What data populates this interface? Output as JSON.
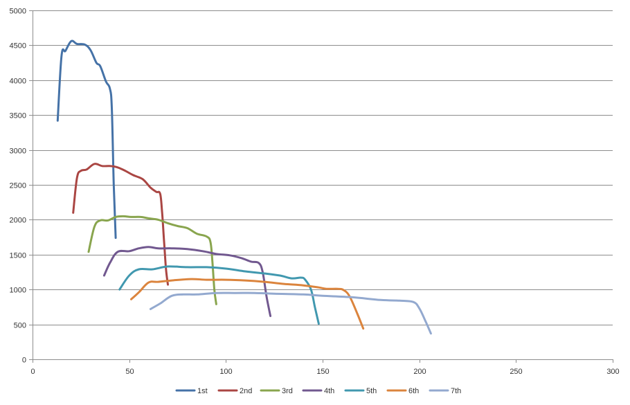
{
  "chart_data": {
    "type": "line",
    "title": "",
    "xlabel": "",
    "ylabel": "",
    "xlim": [
      0,
      300
    ],
    "ylim": [
      0,
      5000
    ],
    "x_ticks": [
      0,
      50,
      100,
      150,
      200,
      250,
      300
    ],
    "y_ticks": [
      0,
      500,
      1000,
      1500,
      2000,
      2500,
      3000,
      3500,
      4000,
      4500,
      5000
    ],
    "x_tick_labels": [
      "0",
      "50",
      "100",
      "150",
      "200",
      "250",
      "300"
    ],
    "y_tick_labels": [
      "0",
      "500",
      "1000",
      "1500",
      "2000",
      "2500",
      "3000",
      "3500",
      "4000",
      "4500",
      "5000"
    ],
    "grid": "horizontal",
    "legend_position": "bottom",
    "series": [
      {
        "name": "1st",
        "color": "#4572A7",
        "points": [
          [
            13,
            3420
          ],
          [
            15,
            4350
          ],
          [
            17,
            4420
          ],
          [
            20,
            4560
          ],
          [
            23,
            4520
          ],
          [
            27,
            4510
          ],
          [
            30,
            4430
          ],
          [
            33,
            4250
          ],
          [
            35,
            4200
          ],
          [
            38,
            3980
          ],
          [
            40,
            3880
          ],
          [
            41,
            3600
          ],
          [
            42,
            2500
          ],
          [
            43,
            1740
          ]
        ]
      },
      {
        "name": "2nd",
        "color": "#AA4643",
        "points": [
          [
            21,
            2100
          ],
          [
            23,
            2600
          ],
          [
            25,
            2700
          ],
          [
            28,
            2720
          ],
          [
            32,
            2800
          ],
          [
            36,
            2770
          ],
          [
            40,
            2770
          ],
          [
            44,
            2750
          ],
          [
            48,
            2700
          ],
          [
            52,
            2640
          ],
          [
            57,
            2580
          ],
          [
            61,
            2460
          ],
          [
            64,
            2400
          ],
          [
            66,
            2370
          ],
          [
            67,
            2100
          ],
          [
            68,
            1700
          ],
          [
            69,
            1300
          ],
          [
            70,
            1070
          ]
        ]
      },
      {
        "name": "3rd",
        "color": "#89A54E",
        "points": [
          [
            29,
            1540
          ],
          [
            32,
            1900
          ],
          [
            35,
            1990
          ],
          [
            39,
            1990
          ],
          [
            43,
            2040
          ],
          [
            47,
            2050
          ],
          [
            51,
            2040
          ],
          [
            56,
            2040
          ],
          [
            60,
            2020
          ],
          [
            65,
            2000
          ],
          [
            70,
            1950
          ],
          [
            75,
            1910
          ],
          [
            80,
            1880
          ],
          [
            85,
            1800
          ],
          [
            90,
            1760
          ],
          [
            92,
            1680
          ],
          [
            93,
            1400
          ],
          [
            94,
            1000
          ],
          [
            95,
            790
          ]
        ]
      },
      {
        "name": "4th",
        "color": "#71588F",
        "points": [
          [
            37,
            1200
          ],
          [
            40,
            1380
          ],
          [
            44,
            1540
          ],
          [
            50,
            1550
          ],
          [
            55,
            1590
          ],
          [
            60,
            1610
          ],
          [
            65,
            1590
          ],
          [
            72,
            1590
          ],
          [
            80,
            1580
          ],
          [
            88,
            1550
          ],
          [
            95,
            1510
          ],
          [
            102,
            1490
          ],
          [
            108,
            1450
          ],
          [
            113,
            1400
          ],
          [
            117,
            1380
          ],
          [
            119,
            1250
          ],
          [
            121,
            900
          ],
          [
            123,
            620
          ]
        ]
      },
      {
        "name": "5th",
        "color": "#4198AF",
        "points": [
          [
            45,
            1000
          ],
          [
            50,
            1200
          ],
          [
            55,
            1290
          ],
          [
            62,
            1290
          ],
          [
            70,
            1330
          ],
          [
            80,
            1320
          ],
          [
            90,
            1320
          ],
          [
            100,
            1300
          ],
          [
            110,
            1260
          ],
          [
            120,
            1230
          ],
          [
            128,
            1200
          ],
          [
            134,
            1160
          ],
          [
            139,
            1170
          ],
          [
            141,
            1140
          ],
          [
            144,
            1000
          ],
          [
            146,
            750
          ],
          [
            148,
            510
          ]
        ]
      },
      {
        "name": "6th",
        "color": "#DB843D",
        "points": [
          [
            51,
            860
          ],
          [
            55,
            960
          ],
          [
            60,
            1100
          ],
          [
            65,
            1110
          ],
          [
            72,
            1130
          ],
          [
            82,
            1150
          ],
          [
            90,
            1140
          ],
          [
            100,
            1140
          ],
          [
            110,
            1130
          ],
          [
            120,
            1110
          ],
          [
            130,
            1080
          ],
          [
            140,
            1060
          ],
          [
            148,
            1030
          ],
          [
            152,
            1010
          ],
          [
            158,
            1010
          ],
          [
            161,
            990
          ],
          [
            164,
            900
          ],
          [
            168,
            650
          ],
          [
            171,
            440
          ]
        ]
      },
      {
        "name": "7th",
        "color": "#93A9CF",
        "points": [
          [
            61,
            720
          ],
          [
            66,
            800
          ],
          [
            72,
            910
          ],
          [
            78,
            930
          ],
          [
            85,
            930
          ],
          [
            95,
            950
          ],
          [
            105,
            950
          ],
          [
            115,
            950
          ],
          [
            125,
            940
          ],
          [
            140,
            930
          ],
          [
            150,
            910
          ],
          [
            165,
            890
          ],
          [
            180,
            850
          ],
          [
            190,
            840
          ],
          [
            197,
            820
          ],
          [
            200,
            730
          ],
          [
            203,
            560
          ],
          [
            206,
            370
          ]
        ]
      }
    ]
  }
}
